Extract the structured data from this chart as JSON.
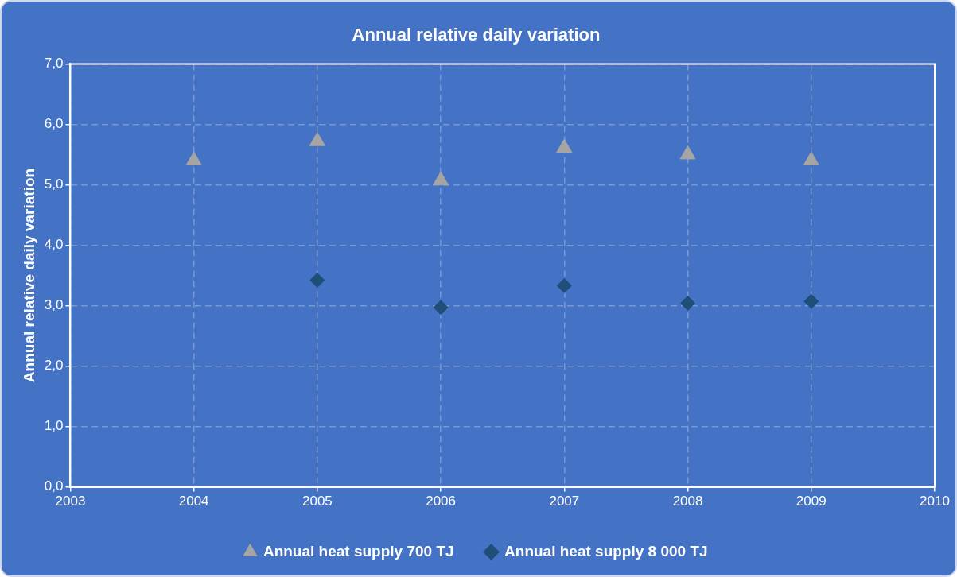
{
  "chart_data": {
    "type": "scatter",
    "title": "Annual relative daily variation",
    "ylabel": "Annual relative daily variation",
    "x": [
      2004,
      2005,
      2006,
      2007,
      2008,
      2009
    ],
    "series": [
      {
        "name": "Annual heat supply 700 TJ",
        "color": "#a5a5a5",
        "marker": "triangle",
        "values": [
          5.4,
          5.72,
          5.07,
          5.61,
          5.5,
          5.4
        ]
      },
      {
        "name": "Annual heat supply 8 000 TJ",
        "color": "#1f4e79",
        "marker": "diamond",
        "values": [
          null,
          3.42,
          2.97,
          3.33,
          3.04,
          3.07
        ]
      }
    ],
    "xlim": [
      2003,
      2010
    ],
    "xticks": [
      2003,
      2004,
      2005,
      2006,
      2007,
      2008,
      2009,
      2010
    ],
    "ylim": [
      0,
      7
    ],
    "yticks": [
      {
        "value": 0,
        "label": "0,0"
      },
      {
        "value": 1,
        "label": "1,0"
      },
      {
        "value": 2,
        "label": "2,0"
      },
      {
        "value": 3,
        "label": "3,0"
      },
      {
        "value": 4,
        "label": "4,0"
      },
      {
        "value": 5,
        "label": "5,0"
      },
      {
        "value": 6,
        "label": "6,0"
      },
      {
        "value": 7,
        "label": "7,0"
      }
    ],
    "grid": true,
    "legend": "bottom"
  }
}
